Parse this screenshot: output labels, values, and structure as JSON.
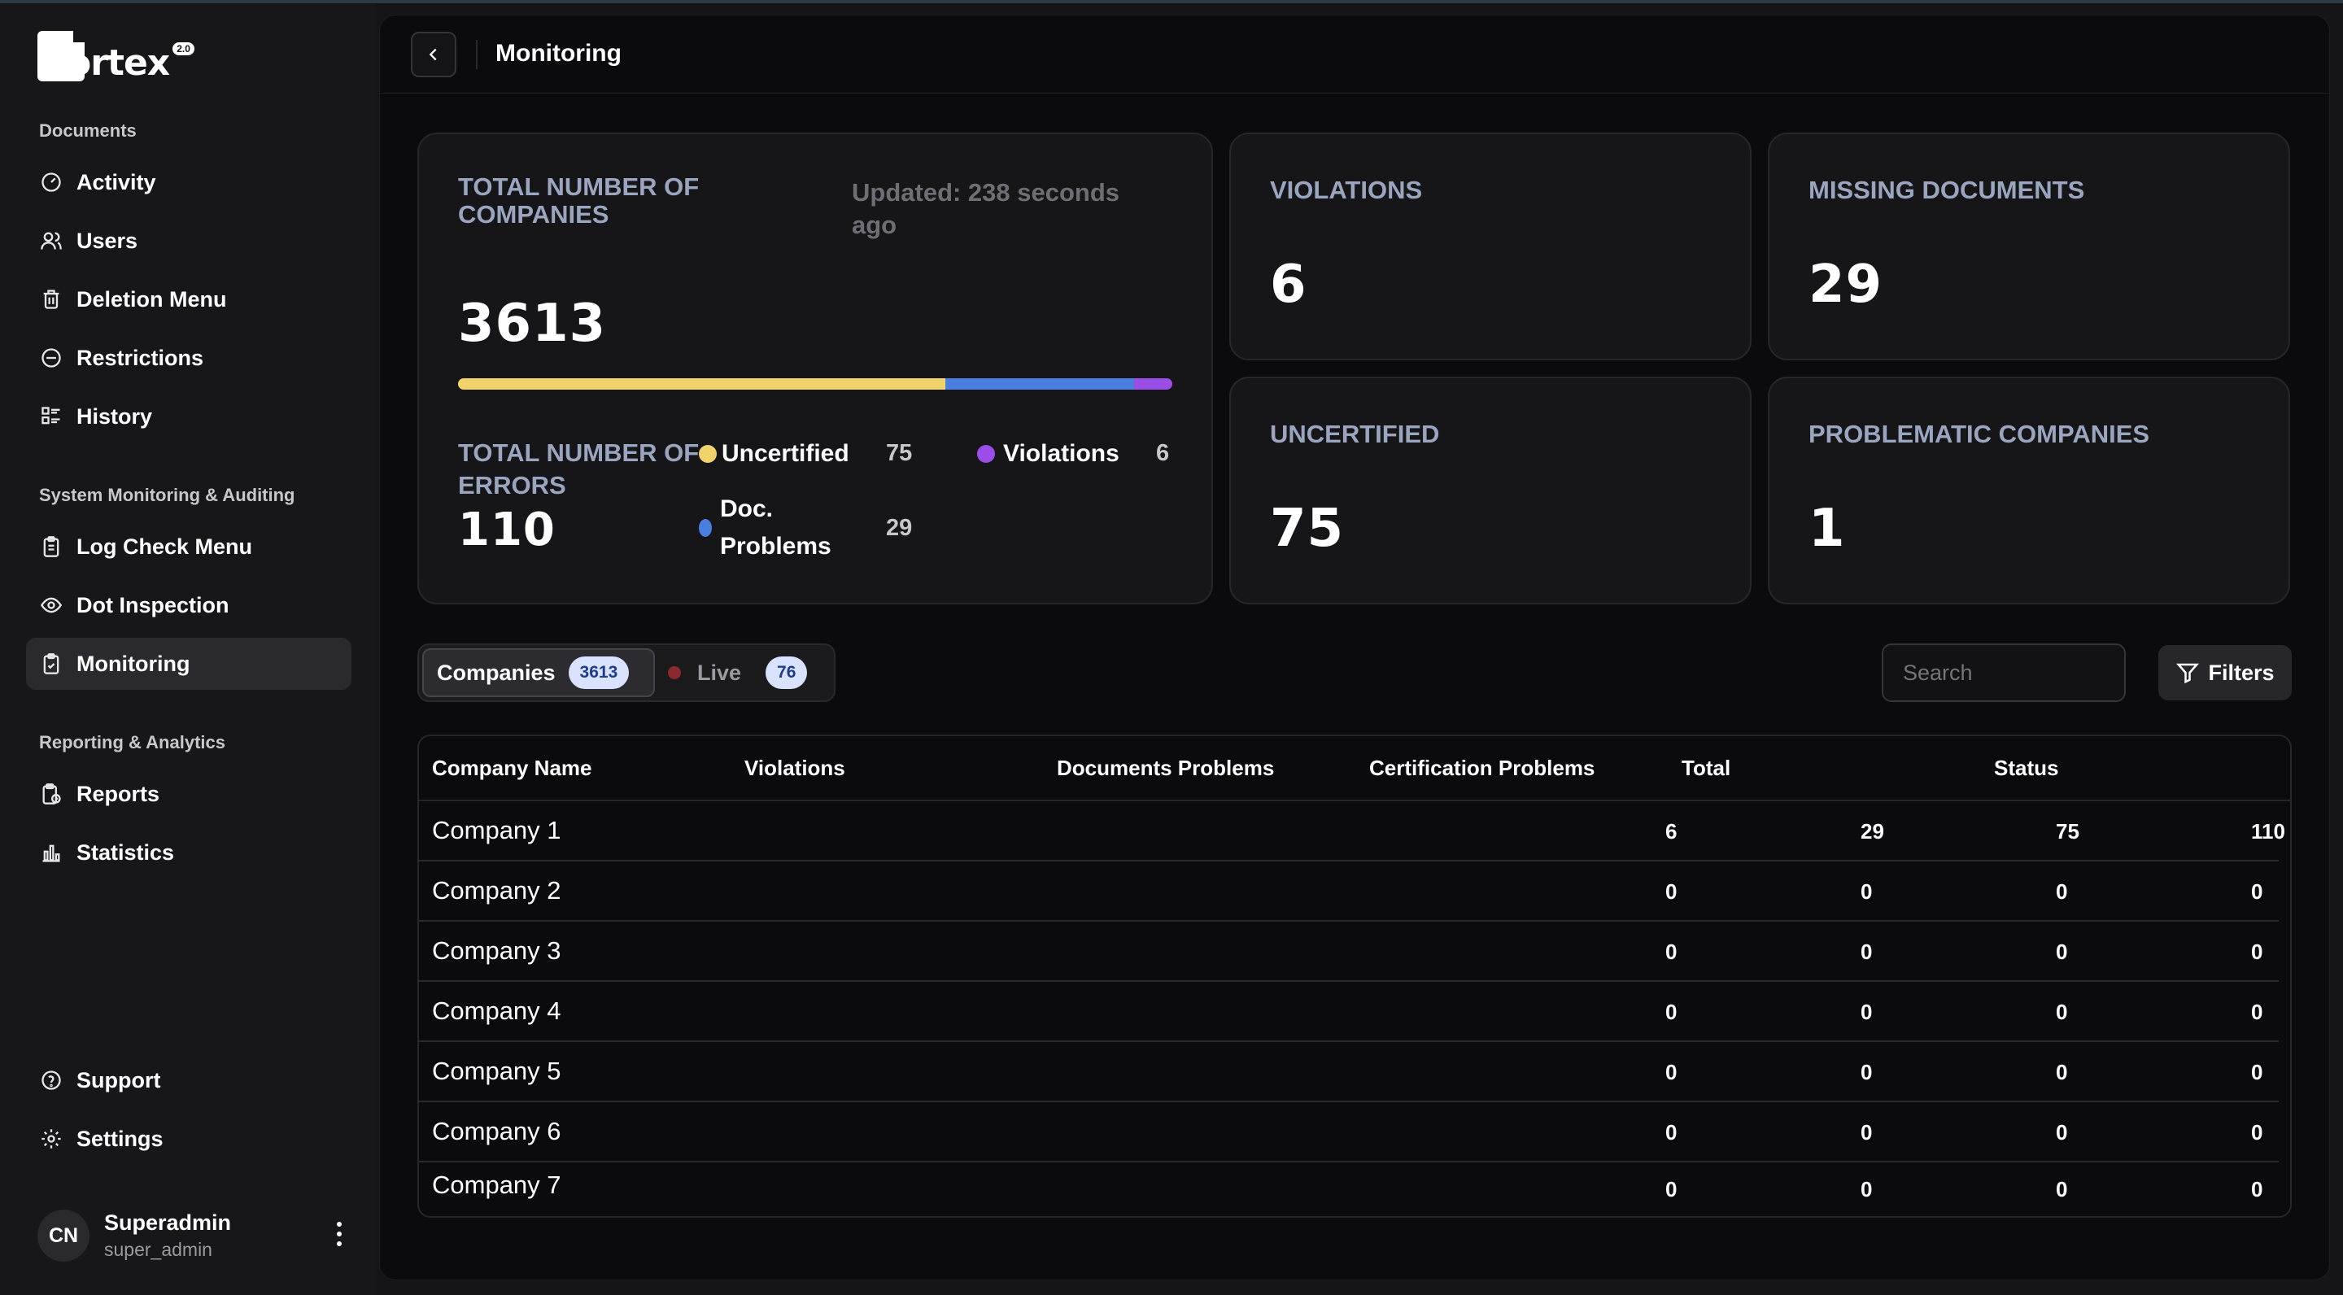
{
  "app": {
    "logo_text": "ortex",
    "logo_badge": "2.0"
  },
  "sidebar": {
    "sections": [
      {
        "label": "Documents"
      },
      {
        "label": "System Monitoring & Auditing"
      },
      {
        "label": "Reporting & Analytics"
      }
    ],
    "items": [
      {
        "label": "Activity",
        "icon": "activity-icon"
      },
      {
        "label": "Users",
        "icon": "users-icon"
      },
      {
        "label": "Deletion Menu",
        "icon": "trash-icon"
      },
      {
        "label": "Restrictions",
        "icon": "restriction-icon"
      },
      {
        "label": "History",
        "icon": "history-icon"
      },
      {
        "label": "Log Check Menu",
        "icon": "clipboard-icon"
      },
      {
        "label": "Dot Inspection",
        "icon": "eye-icon"
      },
      {
        "label": "Monitoring",
        "icon": "clipboard-check-icon",
        "active": true
      },
      {
        "label": "Reports",
        "icon": "report-icon"
      },
      {
        "label": "Statistics",
        "icon": "bar-chart-icon"
      },
      {
        "label": "Support",
        "icon": "help-icon"
      },
      {
        "label": "Settings",
        "icon": "gear-icon"
      }
    ],
    "user": {
      "initials": "CN",
      "name": "Superadmin",
      "handle": "super_admin"
    }
  },
  "header": {
    "title": "Monitoring"
  },
  "summary": {
    "total_companies_label": "TOTAL NUMBER OF COMPANIES",
    "updated": "Updated: 238 seconds ago",
    "total_companies": "3613",
    "total_errors_label": "TOTAL NUMBER OF ERRORS",
    "total_errors": "110",
    "progress": [
      {
        "name": "Uncertified",
        "fraction": 0.682,
        "color": "#f2d36b"
      },
      {
        "name": "Doc. Problems",
        "fraction": 0.264,
        "color": "#4a7fe0"
      },
      {
        "name": "Violations",
        "fraction": 0.054,
        "color": "#9b4de8"
      }
    ],
    "legend": [
      {
        "label": "Uncertified",
        "value": "75",
        "color": "#f2d36b"
      },
      {
        "label": "Violations",
        "value": "6",
        "color": "#9b4de8"
      },
      {
        "label": "Doc. Problems",
        "value": "29",
        "color": "#4a7fe0"
      }
    ]
  },
  "stats": [
    {
      "label": "VIOLATIONS",
      "value": "6"
    },
    {
      "label": "MISSING DOCUMENTS",
      "value": "29"
    },
    {
      "label": "UNCERTIFIED",
      "value": "75"
    },
    {
      "label": "PROBLEMATIC COMPANIES",
      "value": "1"
    }
  ],
  "tabs": {
    "companies_label": "Companies",
    "companies_count": "3613",
    "live_label": "Live",
    "live_count": "76"
  },
  "toolbar": {
    "search_placeholder": "Search",
    "filters_label": "Filters"
  },
  "table": {
    "columns": [
      "Company Name",
      "Violations",
      "Documents Problems",
      "Certification Problems",
      "Total",
      "Status"
    ],
    "rows": [
      {
        "name": "Company 1",
        "values": [
          "6",
          "29",
          "75",
          "110"
        ]
      },
      {
        "name": "Company 2",
        "values": [
          "0",
          "0",
          "0",
          "0"
        ]
      },
      {
        "name": "Company 3",
        "values": [
          "0",
          "0",
          "0",
          "0"
        ]
      },
      {
        "name": "Company 4",
        "values": [
          "0",
          "0",
          "0",
          "0"
        ]
      },
      {
        "name": "Company 5",
        "values": [
          "0",
          "0",
          "0",
          "0"
        ]
      },
      {
        "name": "Company 6",
        "values": [
          "0",
          "0",
          "0",
          "0"
        ]
      },
      {
        "name": "Company 7",
        "values": [
          "0",
          "0",
          "0",
          "0"
        ]
      }
    ]
  }
}
